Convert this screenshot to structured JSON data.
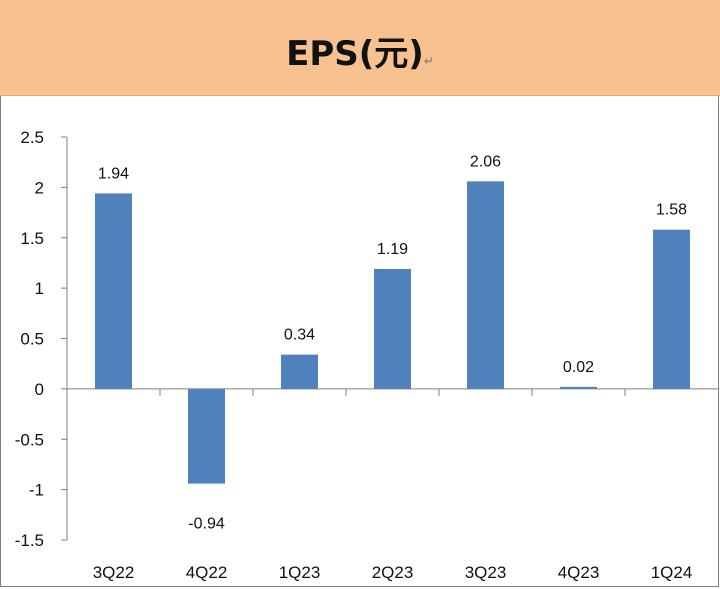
{
  "header": {
    "title": "EPS(元)",
    "title_mark": "↵"
  },
  "colors": {
    "header_bg": "#F8C290",
    "bar": "#4F81BD",
    "axis": "#808080"
  },
  "chart_data": {
    "type": "bar",
    "title": "EPS(元)",
    "xlabel": "",
    "ylabel": "",
    "categories": [
      "3Q22",
      "4Q22",
      "1Q23",
      "2Q23",
      "3Q23",
      "4Q23",
      "1Q24"
    ],
    "values": [
      1.94,
      -0.94,
      0.34,
      1.19,
      2.06,
      0.02,
      1.58
    ],
    "value_labels": [
      "1.94",
      "-0.94",
      "0.34",
      "1.19",
      "2.06",
      "0.02",
      "1.58"
    ],
    "ylim": [
      -1.5,
      2.5
    ],
    "yticks": [
      2.5,
      2,
      1.5,
      1,
      0.5,
      0,
      -0.5,
      -1,
      -1.5
    ],
    "ytick_labels": [
      "2.5",
      "2",
      "1.5",
      "1",
      "0.5",
      "0",
      "-0.5",
      "-1",
      "-1.5"
    ],
    "grid": false,
    "legend": "none"
  }
}
